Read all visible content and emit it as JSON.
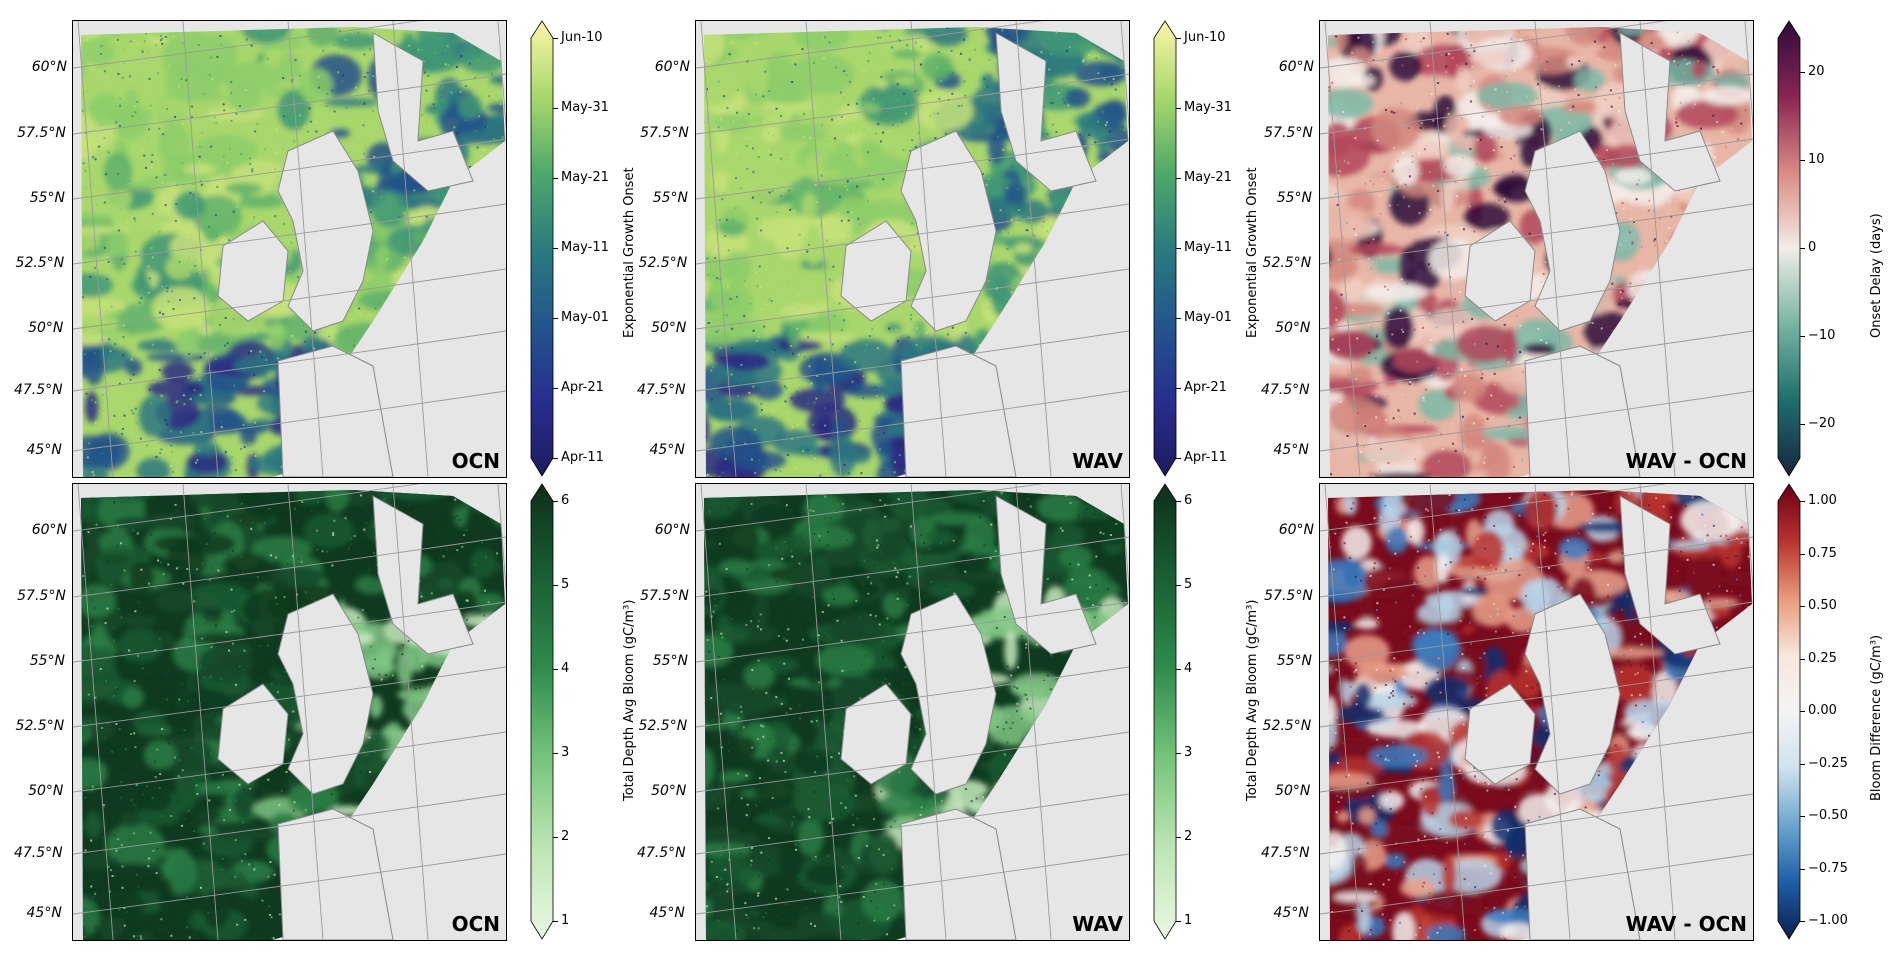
{
  "panels": [
    {
      "id": "onset-ocn",
      "label": "OCN"
    },
    {
      "id": "onset-wav",
      "label": "WAV"
    },
    {
      "id": "onset-diff",
      "label": "WAV - OCN"
    },
    {
      "id": "bloom-ocn",
      "label": "OCN"
    },
    {
      "id": "bloom-wav",
      "label": "WAV"
    },
    {
      "id": "bloom-diff",
      "label": "WAV - OCN"
    }
  ],
  "latitude_labels": [
    "60°N",
    "57.5°N",
    "55°N",
    "52.5°N",
    "50°N",
    "47.5°N",
    "45°N"
  ],
  "colorbars": {
    "onset": {
      "label": "Exponential Growth Onset",
      "ticks": [
        "Jun-10",
        "May-31",
        "May-21",
        "May-11",
        "May-01",
        "Apr-21",
        "Apr-11"
      ],
      "colors": [
        "#fdf5a8",
        "#a7d86c",
        "#4fa96a",
        "#2b7b7e",
        "#23568c",
        "#262e8f",
        "#1f1a5e"
      ]
    },
    "delay": {
      "label": "Onset Delay (days)",
      "ticks": [
        "20",
        "10",
        "0",
        "−10",
        "−20"
      ],
      "colors": [
        "#2e0b3a",
        "#8a2553",
        "#d98b84",
        "#f2ede7",
        "#77b5a3",
        "#1f6e6b",
        "#16263f"
      ]
    },
    "bloom": {
      "label": "Total Depth Avg Bloom (gC/m³)",
      "ticks": [
        "6",
        "5",
        "4",
        "3",
        "2",
        "1"
      ],
      "colors": [
        "#0c2f1a",
        "#1a5e33",
        "#2e8a4b",
        "#74c47a",
        "#bde6b4",
        "#eaf8e3"
      ]
    },
    "bloomdiff": {
      "label": "Bloom Difference (gC/m³)",
      "ticks": [
        "1.00",
        "0.75",
        "0.50",
        "0.25",
        "0.00",
        "−0.25",
        "−0.50",
        "−0.75",
        "−1.00"
      ],
      "colors": [
        "#6b0014",
        "#b8322e",
        "#e79a78",
        "#f7e6dc",
        "#f4f4f4",
        "#cfe2ee",
        "#6ba5d0",
        "#1f5ea8",
        "#0b1d4d"
      ]
    }
  },
  "map_colors": {
    "onset": [
      "#a9d76c",
      "#8ccd6a",
      "#c7e27a",
      "#5fb16b",
      "#3f9775",
      "#2d7780",
      "#23528a",
      "#2b2882"
    ],
    "delay": [
      "#e8b6a7",
      "#f0cfc3",
      "#d4877c",
      "#f4efea",
      "#b3455a",
      "#2e0b3a",
      "#7bb8a6"
    ],
    "bloom": [
      "#0f3a1f",
      "#15482a",
      "#1b5a33",
      "#2a7c45",
      "#7fc684",
      "#c8ebbe"
    ],
    "bloomdiff": [
      "#7a0a1c",
      "#b8322e",
      "#e9a08a",
      "#f4f1ef",
      "#b8d3e8",
      "#3b7dbf",
      "#0f2e6e"
    ]
  }
}
